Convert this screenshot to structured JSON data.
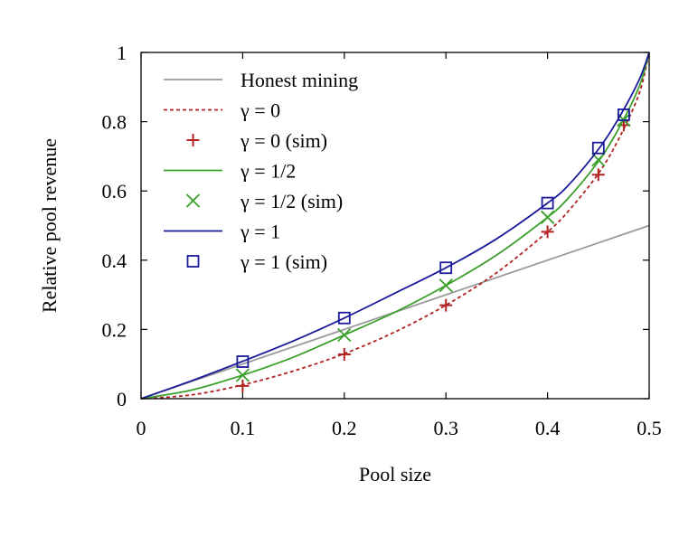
{
  "chart_data": {
    "type": "line",
    "title": "",
    "xlabel": "Pool size",
    "ylabel": "Relative pool revenue",
    "xlim": [
      0,
      0.5
    ],
    "ylim": [
      0,
      1
    ],
    "xticks": [
      0,
      0.1,
      0.2,
      0.3,
      0.4,
      0.5
    ],
    "xtick_labels": [
      "0",
      "0.1",
      "0.2",
      "0.3",
      "0.4",
      "0.5"
    ],
    "yticks": [
      0,
      0.2,
      0.4,
      0.6,
      0.8,
      1
    ],
    "ytick_labels": [
      "0",
      "0.2",
      "0.4",
      "0.6",
      "0.8",
      "1"
    ],
    "grid": false,
    "legend_position": "top-left",
    "series": [
      {
        "name": "Honest mining",
        "kind": "line",
        "color": "#9a9a9a",
        "dash": "solid",
        "x": [
          0,
          0.5
        ],
        "y": [
          0,
          0.5
        ]
      },
      {
        "name": "γ = 0",
        "kind": "line",
        "color": "#b22222",
        "dash": "dashed",
        "x": [
          0,
          0.05,
          0.1,
          0.15,
          0.2,
          0.25,
          0.3,
          0.35,
          0.4,
          0.42,
          0.45,
          0.47,
          0.49,
          0.5
        ],
        "y": [
          0,
          0.011,
          0.04,
          0.08,
          0.13,
          0.193,
          0.27,
          0.364,
          0.482,
          0.54,
          0.65,
          0.75,
          0.88,
          1
        ]
      },
      {
        "name": "γ = 0 (sim)",
        "kind": "scatter",
        "marker": "plus",
        "color": "#b22222",
        "x": [
          0.1,
          0.2,
          0.3,
          0.4,
          0.45,
          0.475
        ],
        "y": [
          0.037,
          0.128,
          0.27,
          0.482,
          0.647,
          0.79
        ]
      },
      {
        "name": "γ = 1/2",
        "kind": "line",
        "color": "#3aa02a",
        "dash": "solid",
        "x": [
          0,
          0.05,
          0.1,
          0.15,
          0.2,
          0.25,
          0.3,
          0.35,
          0.4,
          0.42,
          0.45,
          0.47,
          0.49,
          0.5
        ],
        "y": [
          0,
          0.025,
          0.068,
          0.12,
          0.184,
          0.25,
          0.327,
          0.415,
          0.524,
          0.578,
          0.685,
          0.78,
          0.9,
          1
        ]
      },
      {
        "name": "γ = 1/2 (sim)",
        "kind": "scatter",
        "marker": "cross",
        "color": "#3aa02a",
        "x": [
          0.1,
          0.2,
          0.3,
          0.4,
          0.45,
          0.475
        ],
        "y": [
          0.068,
          0.184,
          0.327,
          0.524,
          0.69,
          0.805
        ]
      },
      {
        "name": "γ = 1",
        "kind": "line",
        "color": "#1a1a9a",
        "dash": "solid",
        "x": [
          0,
          0.05,
          0.1,
          0.15,
          0.2,
          0.25,
          0.3,
          0.35,
          0.4,
          0.42,
          0.45,
          0.47,
          0.49,
          0.5
        ],
        "y": [
          0,
          0.052,
          0.108,
          0.167,
          0.233,
          0.305,
          0.378,
          0.462,
          0.565,
          0.615,
          0.72,
          0.81,
          0.92,
          1
        ]
      },
      {
        "name": "γ = 1 (sim)",
        "kind": "scatter",
        "marker": "square",
        "color": "#1a1a9a",
        "x": [
          0.1,
          0.2,
          0.3,
          0.4,
          0.45,
          0.475
        ],
        "y": [
          0.107,
          0.233,
          0.378,
          0.565,
          0.724,
          0.82
        ]
      }
    ]
  }
}
